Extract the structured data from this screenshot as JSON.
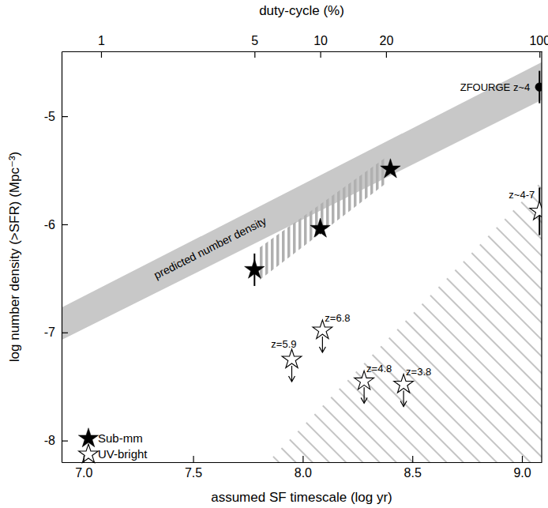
{
  "chart_data": {
    "type": "scatter",
    "xlabel": "assumed SF timescale (log yr)",
    "ylabel": "log number density (>SFR) (Mpc⁻³)",
    "x2label": "duty-cycle (%)",
    "xlim": [
      6.9,
      9.09
    ],
    "xticks": [
      {
        "value": 7,
        "label": "7.0"
      },
      {
        "value": 7.5,
        "label": "7.5"
      },
      {
        "value": 8,
        "label": "8.0"
      },
      {
        "value": 8.5,
        "label": "8.5"
      },
      {
        "value": 9,
        "label": "9.0"
      }
    ],
    "x2ticks": [
      {
        "value": 7.08,
        "label": "1"
      },
      {
        "value": 7.78,
        "label": "5"
      },
      {
        "value": 8.08,
        "label": "10"
      },
      {
        "value": 8.38,
        "label": "20"
      },
      {
        "value": 9.08,
        "label": "100"
      }
    ],
    "ylim": [
      -8.2,
      -4.4
    ],
    "yticks": [
      -8,
      -7,
      -6,
      -5
    ],
    "legend": "lower left",
    "bands": [
      {
        "label": "predicted number density",
        "color": "#c8c8c8",
        "x": [
          6.9,
          9.09
        ],
        "lower": [
          -7.07,
          -4.85
        ],
        "upper": [
          -6.77,
          -4.5
        ]
      },
      {
        "color": "#b0b0b0",
        "x": [
          7.8,
          8.38
        ],
        "lower": [
          -6.52,
          -5.62
        ],
        "upper": [
          -6.22,
          -5.38
        ]
      }
    ],
    "excluded_region": {
      "color": "#c4c4c4",
      "x": [
        7.84,
        9.09
      ],
      "y": [
        -8.2,
        -5.6
      ]
    },
    "series": [
      {
        "name": "Sub-mm",
        "marker": "filled-star",
        "color": "#000000",
        "x": [
          7.78,
          8.08,
          8.4
        ],
        "values": [
          -6.42,
          -6.04,
          -5.49
        ],
        "errors": [
          0.15,
          0.05,
          null
        ]
      },
      {
        "name": "UV-bright",
        "marker": "open-star",
        "color": "#000000",
        "x": [
          7.95,
          8.09,
          8.28,
          8.46,
          9.08
        ],
        "values": [
          -7.25,
          -6.98,
          -7.45,
          -7.48,
          -5.88
        ],
        "errors": [
          null,
          null,
          null,
          null,
          0.22
        ],
        "upper_limit": [
          true,
          true,
          true,
          true,
          false
        ],
        "labels": [
          "z=5.9",
          "z=6.8",
          "z=4.8",
          "z=3.8",
          "z~4-7"
        ]
      },
      {
        "marker": "circle",
        "color": "#000000",
        "x": [
          9.08
        ],
        "values": [
          -4.73
        ],
        "errors": [
          0.15
        ],
        "labels": [
          "ZFOURGE z~4"
        ]
      }
    ]
  }
}
